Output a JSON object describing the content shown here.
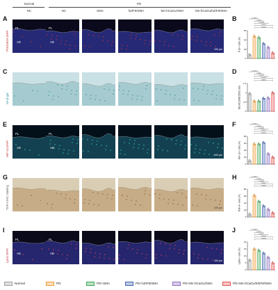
{
  "header": {
    "group_normal": "Normal",
    "group_pd": "PD"
  },
  "columns": [
    "NC",
    "NC",
    "SMA",
    "hZIF8/SMA",
    "Mn-hCaGu/SMA",
    "Mn-hCaGu/hZIF8/SMA"
  ],
  "rows": [
    {
      "letter": "A",
      "stain": "P16INK4A DAPI",
      "kind": "if_blue",
      "chart_letter": "B",
      "ylabel": "P16+ cells (%)",
      "ylim": [
        0,
        60
      ],
      "ticks": [
        0,
        20,
        40,
        60
      ],
      "values": [
        8,
        48,
        45,
        32,
        24,
        12
      ],
      "brackets": [
        "<0.0001",
        "<0.0001",
        "<0.0001",
        "0.1278",
        "0.0002"
      ],
      "labels": [
        "PL",
        "AB"
      ],
      "scale": "100 μm"
    },
    {
      "letter": "C",
      "stain": "SA-β-gal",
      "kind": "sabgal",
      "chart_letter": "D",
      "ylabel": "OD(415)/OD(595) ratio",
      "ylim": [
        0,
        1.5
      ],
      "ticks": [
        0.0,
        0.5,
        1.0,
        1.5
      ],
      "values": [
        0.95,
        0.55,
        0.55,
        0.7,
        0.72,
        1.0
      ],
      "brackets": [
        "<0.0001",
        "0.0005",
        "0.0021",
        "<0.0001",
        "0.6891"
      ],
      "labels": [],
      "scale": ""
    },
    {
      "letter": "E",
      "stain": "HIF-1α DAPI",
      "kind": "if_teal",
      "chart_letter": "F",
      "ylabel": "HIF-1α+ cells (%)",
      "ylim": [
        0,
        80
      ],
      "ticks": [
        0,
        20,
        40,
        60,
        80
      ],
      "values": [
        10,
        58,
        58,
        62,
        30,
        20
      ],
      "brackets": [
        "<0.0001",
        "<0.0001",
        "<0.0001",
        "0.3301",
        "0.0713"
      ],
      "labels": [
        "PL",
        "AB"
      ],
      "scale": "100 μm"
    },
    {
      "letter": "G",
      "stain": "TNF-α IHC staining",
      "kind": "ihc",
      "chart_letter": "H",
      "ylabel": "TNF-α+ cells (%)",
      "ylim": [
        0,
        80
      ],
      "ticks": [
        0,
        20,
        40,
        60,
        80
      ],
      "values": [
        8,
        62,
        45,
        32,
        22,
        12
      ],
      "brackets": [
        "<0.0001",
        "<0.0001",
        "<0.0001",
        "0.0013",
        "0.0015"
      ],
      "labels": [],
      "scale": "100 μm"
    },
    {
      "letter": "I",
      "stain": "Ly6G DAPI",
      "kind": "if_red",
      "chart_letter": "J",
      "ylabel": "Ly6G+ cells (%)",
      "ylim": [
        0,
        20
      ],
      "ticks": [
        0,
        5,
        10,
        15,
        20
      ],
      "values": [
        7,
        15,
        14,
        12,
        9,
        5
      ],
      "brackets": [
        "<0.0001",
        "<0.0001",
        "0.0001",
        "0.0034",
        "0.0004"
      ],
      "labels": [
        "PL",
        "AB"
      ],
      "scale": "100 μm"
    }
  ],
  "legend": [
    {
      "label": "Normal",
      "color": "#9e9e9e"
    },
    {
      "label": "PD",
      "color": "#f39c33"
    },
    {
      "label": "PD+SMA",
      "color": "#3aa654"
    },
    {
      "label": "PD+hZIF8/SMA",
      "color": "#3f63b5"
    },
    {
      "label": "PD+Mn-hCaGu/SMA",
      "color": "#8e6bbf"
    },
    {
      "label": "PD+Mn-hCaGu/hZIF8/SMA",
      "color": "#e8504e"
    }
  ]
}
